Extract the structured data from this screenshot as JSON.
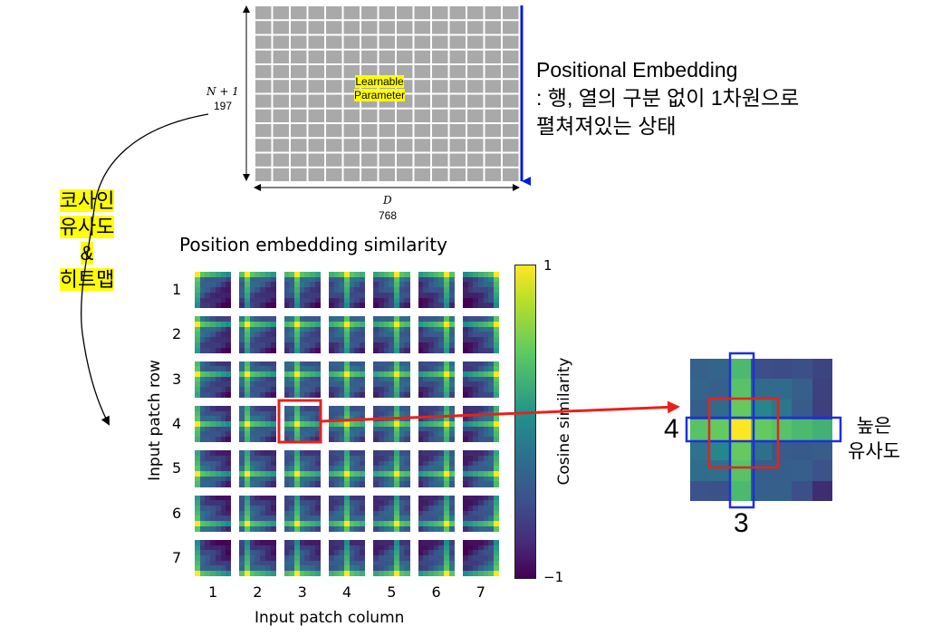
{
  "param_matrix": {
    "label_line1": "Learnable",
    "label_line2": "Parameter",
    "rows_symbol": "N + 1",
    "rows_value": "197",
    "cols_symbol": "D",
    "cols_value": "768"
  },
  "positional_note": {
    "line1": "Positional Embedding",
    "line2": ": 행, 열의 구분 없이 1차원으로",
    "line3": "펼쳐져있는 상태"
  },
  "method_label": {
    "line1": "코사인",
    "line2": "유사도",
    "line3": "&",
    "line4": "히트맵"
  },
  "heatmap_grid": {
    "title": "Position embedding similarity",
    "ylabel": "Input patch row",
    "xlabel": "Input patch column",
    "row_labels": [
      "1",
      "2",
      "3",
      "4",
      "5",
      "6",
      "7"
    ],
    "col_labels": [
      "1",
      "2",
      "3",
      "4",
      "5",
      "6",
      "7"
    ],
    "highlighted_row": 4,
    "highlighted_col": 3,
    "highlight_color": "#e8211c"
  },
  "colorbar": {
    "label": "Cosine similarity",
    "max_label": "1",
    "min_label": "−1",
    "colors": [
      "#fde725",
      "#5ec962",
      "#21918c",
      "#3b528b",
      "#440154"
    ]
  },
  "zoom": {
    "row_label": "4",
    "col_label": "3",
    "note_line1": "높은",
    "note_line2": "유사도",
    "row_box_color": "#1f2ee0",
    "center_box_color": "#e8211c"
  }
}
